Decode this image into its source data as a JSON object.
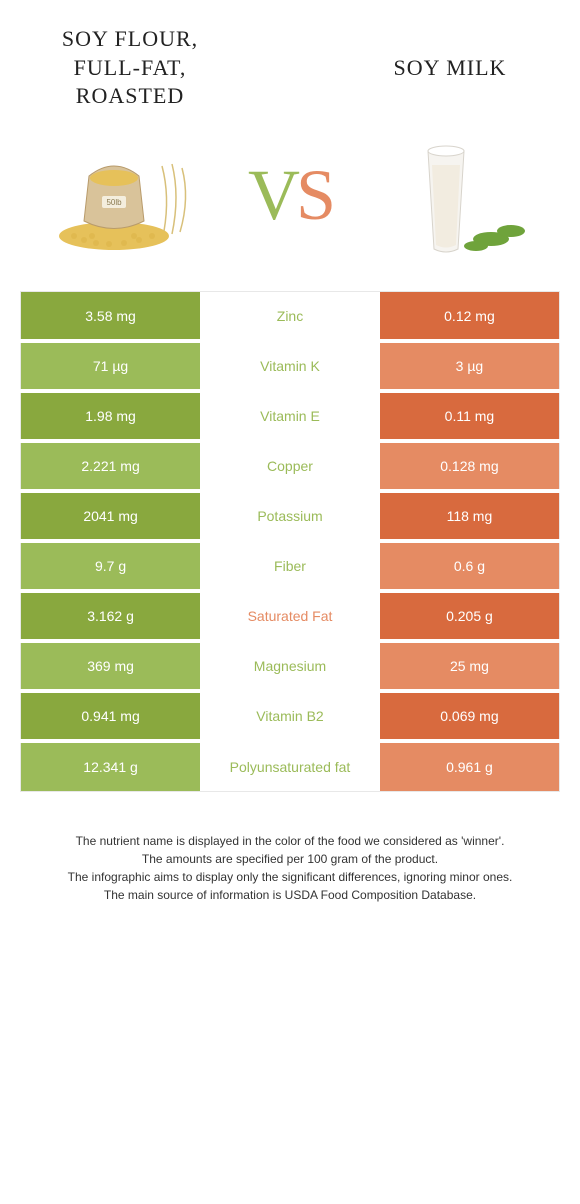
{
  "colors": {
    "left_dark": "#89a83e",
    "left_light": "#9bbb59",
    "right_dark": "#d86a3e",
    "right_light": "#e58b63",
    "vs_left": "#9bbb59",
    "vs_right": "#e58b63",
    "text": "#333333"
  },
  "food_left": {
    "title_line1": "SOY FLOUR,",
    "title_line2": "FULL-FAT,",
    "title_line3": "ROASTED"
  },
  "food_right": {
    "title": "SOY MILK"
  },
  "vs": {
    "v": "V",
    "s": "S"
  },
  "rows": [
    {
      "left": "3.58 mg",
      "mid": "Zinc",
      "right": "0.12 mg",
      "winner": "left"
    },
    {
      "left": "71 µg",
      "mid": "Vitamin K",
      "right": "3 µg",
      "winner": "left"
    },
    {
      "left": "1.98 mg",
      "mid": "Vitamin E",
      "right": "0.11 mg",
      "winner": "left"
    },
    {
      "left": "2.221 mg",
      "mid": "Copper",
      "right": "0.128 mg",
      "winner": "left"
    },
    {
      "left": "2041 mg",
      "mid": "Potassium",
      "right": "118 mg",
      "winner": "left"
    },
    {
      "left": "9.7 g",
      "mid": "Fiber",
      "right": "0.6 g",
      "winner": "left"
    },
    {
      "left": "3.162 g",
      "mid": "Saturated Fat",
      "right": "0.205 g",
      "winner": "right"
    },
    {
      "left": "369 mg",
      "mid": "Magnesium",
      "right": "25 mg",
      "winner": "left"
    },
    {
      "left": "0.941 mg",
      "mid": "Vitamin B2",
      "right": "0.069 mg",
      "winner": "left"
    },
    {
      "left": "12.341 g",
      "mid": "Polyunsaturated fat",
      "right": "0.961 g",
      "winner": "left"
    }
  ],
  "footer": {
    "line1": "The nutrient name is displayed in the color of the food we considered as 'winner'.",
    "line2": "The amounts are specified per 100 gram of the product.",
    "line3": "The infographic aims to display only the significant differences, ignoring minor ones.",
    "line4": "The main source of information is USDA Food Composition Database."
  }
}
